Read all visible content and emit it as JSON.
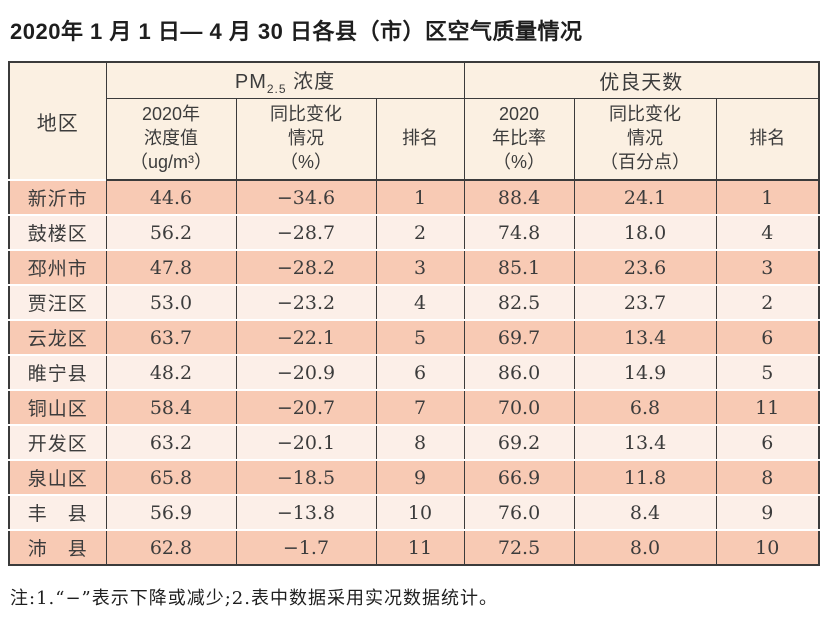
{
  "title": "2020年 1 月 1 日— 4 月 30 日各县（市）区空气质量情况",
  "table": {
    "region_header": "地区",
    "pm_group": {
      "pm": "PM",
      "sub": "2.5",
      "rest": " 浓度"
    },
    "good_days_group": "优良天数",
    "subheaders": [
      "2020年\n浓度值\n（ug/m³）",
      "同比变化\n情况\n（%）",
      "排名",
      "2020\n年比率\n（%）",
      "同比变化\n情况\n（百分点）",
      "排名"
    ],
    "rows": [
      [
        "新沂市",
        "44.6",
        "−34.6",
        "1",
        "88.4",
        "24.1",
        "1"
      ],
      [
        "鼓楼区",
        "56.2",
        "−28.7",
        "2",
        "74.8",
        "18.0",
        "4"
      ],
      [
        "邳州市",
        "47.8",
        "−28.2",
        "3",
        "85.1",
        "23.6",
        "3"
      ],
      [
        "贾汪区",
        "53.0",
        "−23.2",
        "4",
        "82.5",
        "23.7",
        "2"
      ],
      [
        "云龙区",
        "63.7",
        "−22.1",
        "5",
        "69.7",
        "13.4",
        "6"
      ],
      [
        "睢宁县",
        "48.2",
        "−20.9",
        "6",
        "86.0",
        "14.9",
        "5"
      ],
      [
        "铜山区",
        "58.4",
        "−20.7",
        "7",
        "70.0",
        "6.8",
        "11"
      ],
      [
        "开发区",
        "63.2",
        "−20.1",
        "8",
        "69.2",
        "13.4",
        "6"
      ],
      [
        "泉山区",
        "65.8",
        "−18.5",
        "9",
        "66.9",
        "11.8",
        "8"
      ],
      [
        "丰　县",
        "56.9",
        "−13.8",
        "10",
        "76.0",
        "8.4",
        "9"
      ],
      [
        "沛　县",
        "62.8",
        "−1.7",
        "11",
        "72.5",
        "8.0",
        "10"
      ]
    ]
  },
  "note": "注:1.“−”表示下降或减少;2.表中数据采用实况数据统计。",
  "colors": {
    "header_bg": "#fbf0e2",
    "row_odd_bg": "#f8cab4",
    "row_even_bg": "#fcefe8",
    "border": "#3b3b3b",
    "text": "#3c3c3c"
  }
}
